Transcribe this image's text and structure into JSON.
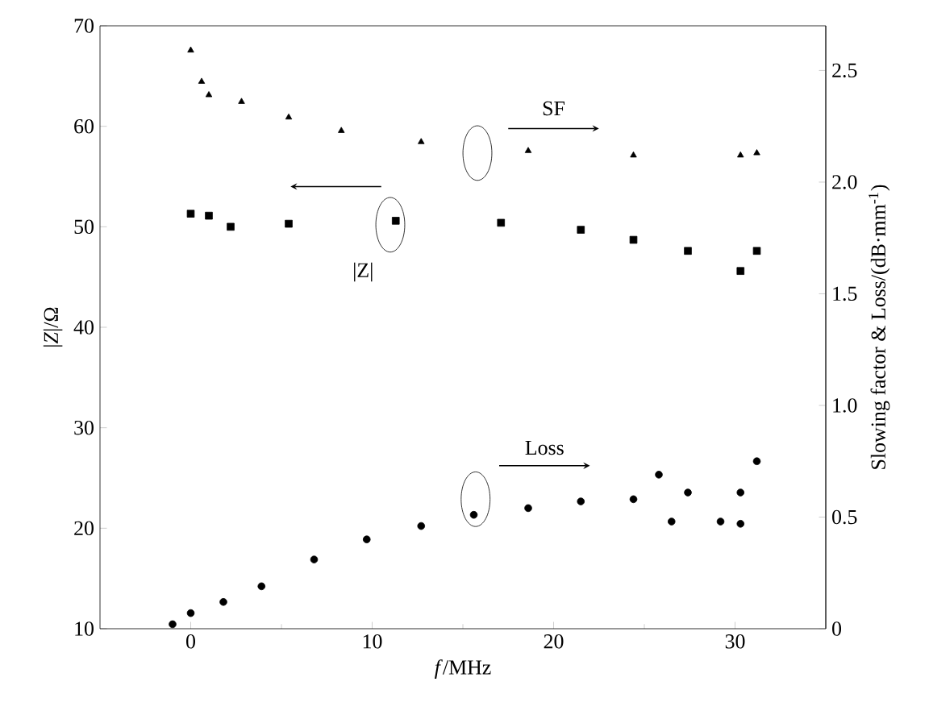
{
  "chart_data": {
    "type": "scatter",
    "xlabel": "*f*/MHz",
    "ylabel": "|*Z*|/Ω",
    "y2label": "Slowing factor & Loss/(dB·mm$^{-1}$)",
    "xlim": [
      -5,
      35
    ],
    "xticks": [
      0,
      10,
      20,
      30
    ],
    "ylim": [
      10,
      70
    ],
    "yticks": [
      10,
      20,
      30,
      40,
      50,
      60,
      70
    ],
    "y2lim": [
      0,
      2.7
    ],
    "y2ticks": [
      0,
      0.5,
      {
        "value": 1,
        "label": "1.0"
      },
      1.5,
      {
        "value": 2,
        "label": "2.0"
      },
      2.5
    ],
    "series": [
      {
        "name": "SF",
        "color": "#000000",
        "marker": "triangle",
        "axis": "y2",
        "x": [
          0,
          0.6,
          1.0,
          2.8,
          5.4,
          8.3,
          12.7,
          18.6,
          24.4,
          30.3,
          31.2
        ],
        "values": [
          2.59,
          2.45,
          2.39,
          2.36,
          2.29,
          2.23,
          2.18,
          2.14,
          2.12,
          2.12,
          2.13
        ]
      },
      {
        "name": "|Z|",
        "color": "#000000",
        "marker": "square",
        "axis": "y",
        "x": [
          0,
          1.0,
          2.2,
          5.4,
          11.3,
          17.1,
          21.5,
          24.4,
          27.4,
          30.3,
          31.2
        ],
        "values": [
          51.3,
          51.1,
          50.0,
          50.3,
          50.6,
          50.4,
          49.7,
          48.7,
          47.6,
          45.6,
          47.6
        ]
      },
      {
        "name": "Loss",
        "color": "#000000",
        "marker": "circle",
        "axis": "y2",
        "x": [
          -1,
          0,
          1.8,
          3.9,
          6.8,
          9.7,
          12.7,
          15.6,
          18.6,
          21.5,
          24.4,
          25.8,
          26.5,
          27.4,
          29.2,
          30.3,
          30.3,
          31.2
        ],
        "values": [
          0.02,
          0.07,
          0.12,
          0.19,
          0.31,
          0.4,
          0.46,
          0.51,
          0.54,
          0.57,
          0.58,
          0.69,
          0.48,
          0.61,
          0.48,
          0.61,
          0.47,
          0.75
        ]
      }
    ]
  }
}
